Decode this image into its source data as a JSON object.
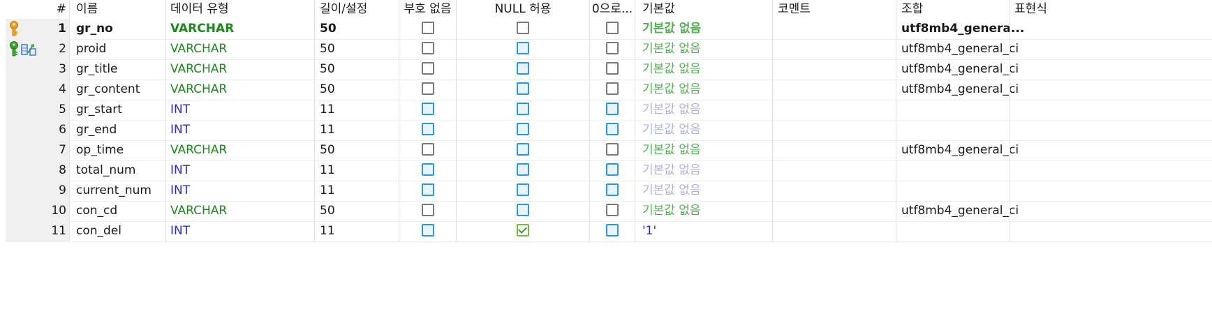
{
  "headers": {
    "num": "#",
    "name": "이름",
    "type": "데이터 유형",
    "length": "길이/설정",
    "unsigned": "부호 없음",
    "allow_null": "NULL 허용",
    "zerofill": "0으로...",
    "default": "기본값",
    "comment": "코멘트",
    "collation": "조합",
    "expression": "표현식"
  },
  "rows": [
    {
      "num": "1",
      "name": "gr_no",
      "type": "VARCHAR",
      "length": "50",
      "unsigned": "unchecked-gray",
      "allow_null": "unchecked-gray",
      "zerofill": "unchecked-gray",
      "default": "기본값 없음",
      "comment": "",
      "collation": "utf8mb4_genera...",
      "key": "primary"
    },
    {
      "num": "2",
      "name": "proid",
      "type": "VARCHAR",
      "length": "50",
      "unsigned": "unchecked-gray",
      "allow_null": "unchecked-blue",
      "zerofill": "unchecked-gray",
      "default": "기본값 없음",
      "comment": "",
      "collation": "utf8mb4_general_ci",
      "key": "foreign"
    },
    {
      "num": "3",
      "name": "gr_title",
      "type": "VARCHAR",
      "length": "50",
      "unsigned": "unchecked-gray",
      "allow_null": "unchecked-blue",
      "zerofill": "unchecked-gray",
      "default": "기본값 없음",
      "comment": "",
      "collation": "utf8mb4_general_ci"
    },
    {
      "num": "4",
      "name": "gr_content",
      "type": "VARCHAR",
      "length": "50",
      "unsigned": "unchecked-gray",
      "allow_null": "unchecked-blue",
      "zerofill": "unchecked-gray",
      "default": "기본값 없음",
      "comment": "",
      "collation": "utf8mb4_general_ci"
    },
    {
      "num": "5",
      "name": "gr_start",
      "type": "INT",
      "length": "11",
      "unsigned": "unchecked-blue",
      "allow_null": "unchecked-blue",
      "zerofill": "unchecked-blue",
      "default": "기본값 없음",
      "comment": "",
      "collation": ""
    },
    {
      "num": "6",
      "name": "gr_end",
      "type": "INT",
      "length": "11",
      "unsigned": "unchecked-blue",
      "allow_null": "unchecked-blue",
      "zerofill": "unchecked-blue",
      "default": "기본값 없음",
      "comment": "",
      "collation": ""
    },
    {
      "num": "7",
      "name": "op_time",
      "type": "VARCHAR",
      "length": "50",
      "unsigned": "unchecked-gray",
      "allow_null": "unchecked-blue",
      "zerofill": "unchecked-gray",
      "default": "기본값 없음",
      "comment": "",
      "collation": "utf8mb4_general_ci"
    },
    {
      "num": "8",
      "name": "total_num",
      "type": "INT",
      "length": "11",
      "unsigned": "unchecked-blue",
      "allow_null": "unchecked-blue",
      "zerofill": "unchecked-blue",
      "default": "기본값 없음",
      "comment": "",
      "collation": ""
    },
    {
      "num": "9",
      "name": "current_num",
      "type": "INT",
      "length": "11",
      "unsigned": "unchecked-blue",
      "allow_null": "unchecked-blue",
      "zerofill": "unchecked-blue",
      "default": "기본값 없음",
      "comment": "",
      "collation": ""
    },
    {
      "num": "10",
      "name": "con_cd",
      "type": "VARCHAR",
      "length": "50",
      "unsigned": "unchecked-gray",
      "allow_null": "unchecked-blue",
      "zerofill": "unchecked-gray",
      "default": "기본값 없음",
      "comment": "",
      "collation": "utf8mb4_general_ci"
    },
    {
      "num": "11",
      "name": "con_del",
      "type": "INT",
      "length": "11",
      "unsigned": "unchecked-blue",
      "allow_null": "checked-green",
      "zerofill": "unchecked-blue",
      "default": "'1'",
      "comment": "",
      "collation": ""
    }
  ],
  "colors": {
    "varchar": "#1a8a1a",
    "int": "#2a2ad6",
    "checkbox_blue": "#2b96e8",
    "checkbox_gray": "#7a7a7a",
    "checkbox_green": "#6bbf3a",
    "primary_key": "#f0a020",
    "foreign_key": "#3a9c2a"
  },
  "icons": {
    "primary": "primary-key-icon",
    "foreign_key": "green-key-icon",
    "foreign_link": "foreign-key-link-icon"
  }
}
